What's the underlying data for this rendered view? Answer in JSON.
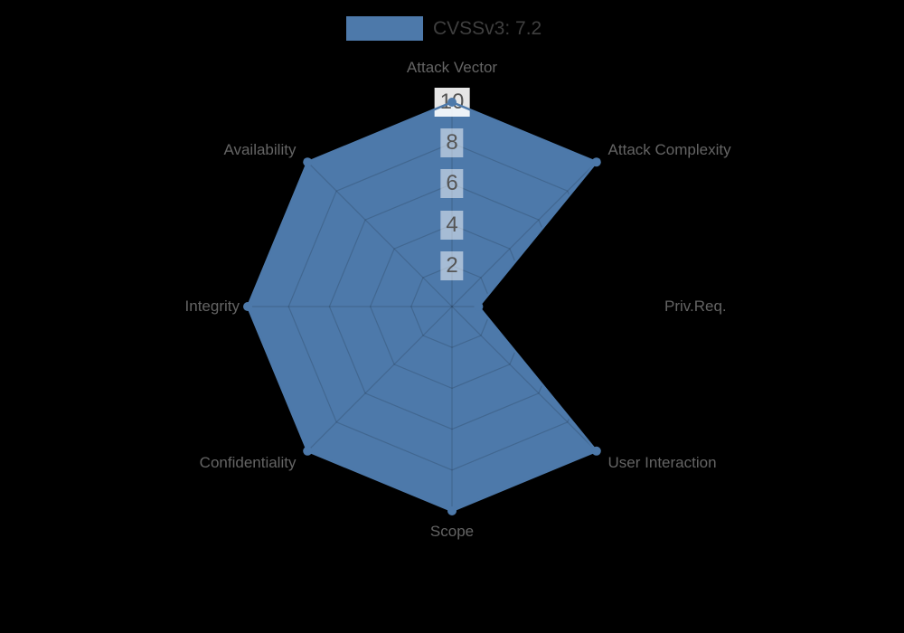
{
  "legend": {
    "label": "CVSSv3: 7.2",
    "swatch_color": "#4d79aa"
  },
  "chart_data": {
    "type": "radar",
    "categories": [
      "Attack Vector",
      "Attack Complexity",
      "Priv.Req.",
      "User Interaction",
      "Scope",
      "Confidentiality",
      "Integrity",
      "Availability"
    ],
    "series": [
      {
        "name": "CVSSv3: 7.2",
        "values": [
          10,
          10,
          1.3,
          10,
          10,
          10,
          10,
          10
        ]
      }
    ],
    "rmax": 10,
    "ticks": [
      2,
      4,
      6,
      8,
      10
    ],
    "start_angle_deg": 90,
    "direction": "clockwise",
    "grid": "polygon-web",
    "legend_position": "top-center",
    "background": "#000000",
    "fill_color": "#4d79aa",
    "line_color": "#4d79aa",
    "marker_color": "#4d79aa",
    "grid_color": "rgba(0,0,0,0.15)",
    "axis_label_color": "#646464",
    "tick_label_color": "#555555",
    "tick_backdrop_color": "rgba(255,255,255,0.5)"
  }
}
